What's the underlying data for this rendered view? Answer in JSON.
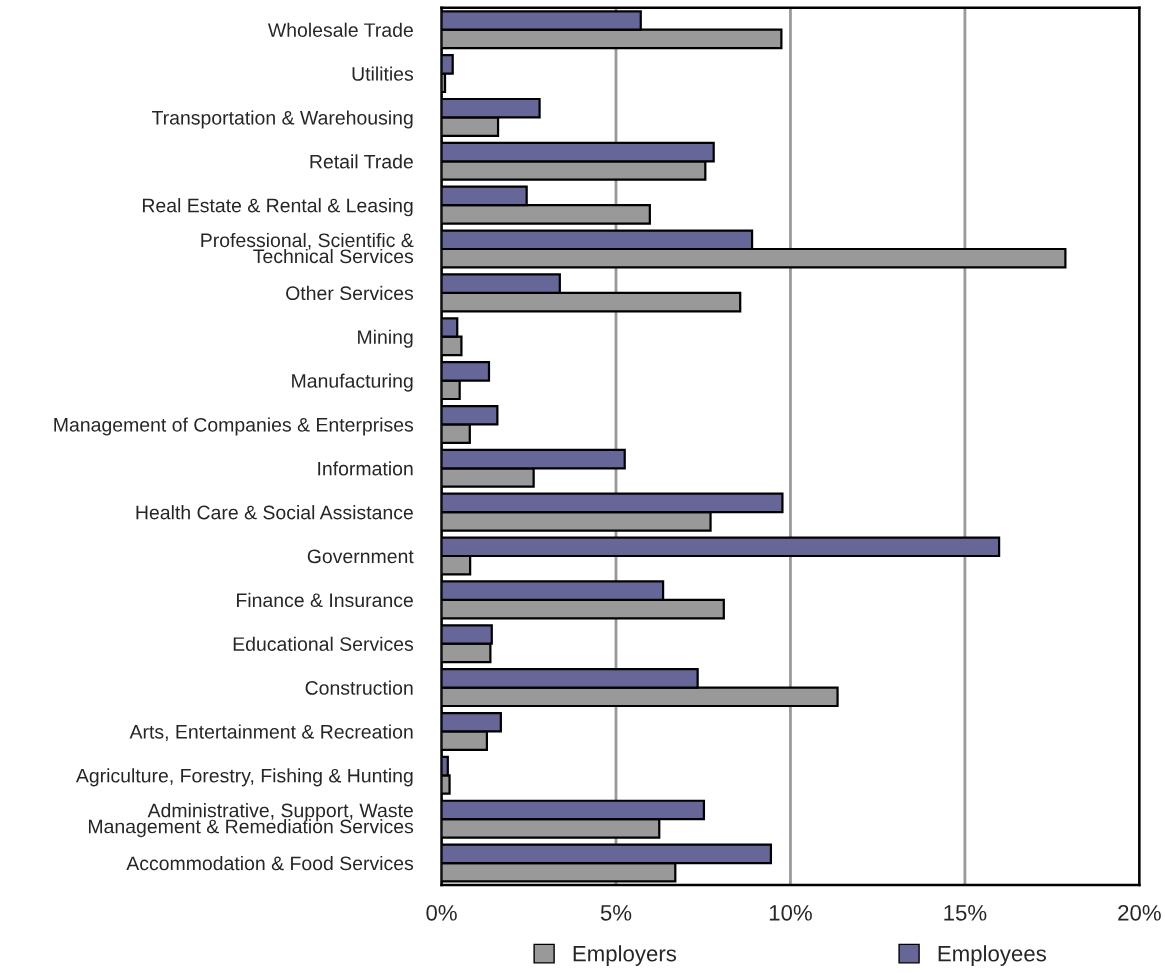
{
  "chart_data": {
    "type": "bar",
    "orientation": "horizontal",
    "categories": [
      "Wholesale Trade",
      "Utilities",
      "Transportation & Warehousing",
      "Retail Trade",
      "Real Estate & Rental & Leasing",
      "Professional, Scientific &\nTechnical Services",
      "Other Services",
      "Mining",
      "Manufacturing",
      "Management of Companies & Enterprises",
      "Information",
      "Health Care & Social Assistance",
      "Government",
      "Finance & Insurance",
      "Educational Services",
      "Construction",
      "Arts, Entertainment & Recreation",
      "Agriculture, Forestry, Fishing & Hunting",
      "Administrative, Support, Waste\nManagement & Remediation Services",
      "Accommodation & Food Services"
    ],
    "series": [
      {
        "name": "Employers",
        "color": "#999999",
        "values": [
          9.74,
          0.1,
          1.62,
          7.56,
          5.97,
          17.88,
          8.56,
          0.57,
          0.52,
          0.81,
          2.64,
          7.71,
          0.82,
          8.09,
          1.4,
          11.35,
          1.3,
          0.23,
          6.24,
          6.7
        ]
      },
      {
        "name": "Employees",
        "color": "#666699",
        "values": [
          5.71,
          0.32,
          2.81,
          7.8,
          2.44,
          8.9,
          3.39,
          0.45,
          1.36,
          1.6,
          5.25,
          9.77,
          15.98,
          6.35,
          1.44,
          7.34,
          1.7,
          0.18,
          7.52,
          9.44
        ]
      }
    ],
    "xlim": [
      0,
      20
    ],
    "xticks": [
      {
        "value": 0,
        "label": "0%"
      },
      {
        "value": 5,
        "label": "5%"
      },
      {
        "value": 10,
        "label": "10%"
      },
      {
        "value": 15,
        "label": "15%"
      },
      {
        "value": 20,
        "label": "20%"
      }
    ],
    "grid": "x",
    "legend": "bottom"
  }
}
